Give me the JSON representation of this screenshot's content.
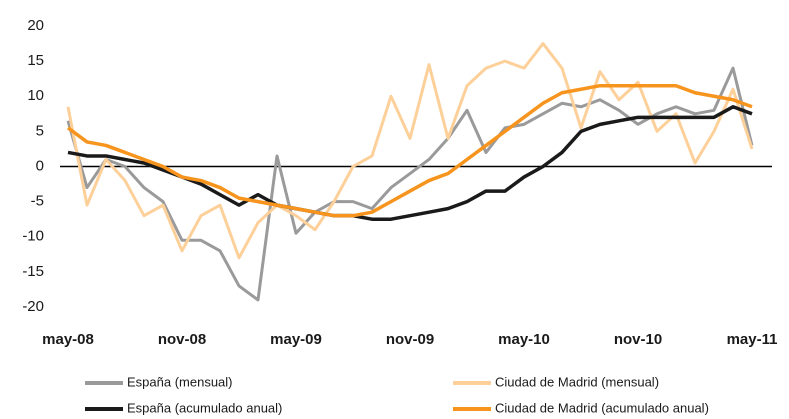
{
  "chart_data": {
    "type": "line",
    "categories": [
      "may-08",
      null,
      null,
      null,
      null,
      null,
      "nov-08",
      null,
      null,
      null,
      null,
      null,
      "may-09",
      null,
      null,
      null,
      null,
      null,
      "nov-09",
      null,
      null,
      null,
      null,
      null,
      "may-10",
      null,
      null,
      null,
      null,
      null,
      "nov-10",
      null,
      null,
      null,
      null,
      null,
      "may-11"
    ],
    "series": [
      {
        "name": "España (mensual)",
        "color": "#9a9a9a",
        "width": 3,
        "values": [
          6.5,
          -3,
          1,
          0,
          -3,
          -5,
          -10.5,
          -10.5,
          -12,
          -17,
          -19,
          1.5,
          -9.5,
          -6.5,
          -5,
          -5,
          -6,
          -3,
          -1,
          1,
          4,
          8,
          2,
          5.5,
          6,
          7.5,
          9,
          8.5,
          9.5,
          8,
          6,
          7.5,
          8.5,
          7.5,
          8,
          14,
          3
        ]
      },
      {
        "name": "Ciudad de Madrid (mensual)",
        "color": "#fdd09a",
        "width": 3,
        "values": [
          8.5,
          -5.5,
          1,
          -2,
          -7,
          -5.5,
          -12,
          -7,
          -5.5,
          -13,
          -8,
          -5.5,
          -7,
          -9,
          -5,
          0,
          1.5,
          10,
          4,
          14.5,
          4,
          11.5,
          14,
          15,
          14,
          17.5,
          14,
          5.5,
          13.5,
          9.5,
          12,
          5,
          7.5,
          0.5,
          5,
          11,
          2.5
        ]
      },
      {
        "name": "España (acumulado anual)",
        "color": "#1a1a1a",
        "width": 3.5,
        "values": [
          2,
          1.5,
          1.5,
          1,
          0.5,
          -0.5,
          -1.5,
          -2.5,
          -4,
          -5.5,
          -4,
          -5.5,
          -6,
          -6.5,
          -7,
          -7,
          -7.5,
          -7.5,
          -7,
          -6.5,
          -6,
          -5,
          -3.5,
          -3.5,
          -1.5,
          0,
          2,
          5,
          6,
          6.5,
          7,
          7,
          7,
          7,
          7,
          8.5,
          7.5
        ]
      },
      {
        "name": "Ciudad de Madrid (acumulado anual)",
        "color": "#f7941d",
        "width": 3.5,
        "values": [
          5.5,
          3.5,
          3,
          2,
          1,
          0,
          -1.5,
          -2,
          -3,
          -4.5,
          -5,
          -5.5,
          -6,
          -6.5,
          -7,
          -7,
          -6.5,
          -5,
          -3.5,
          -2,
          -1,
          1,
          3,
          5,
          7,
          9,
          10.5,
          11,
          11.5,
          11.5,
          11.5,
          11.5,
          11.5,
          10.5,
          10,
          9.5,
          8.5
        ]
      }
    ],
    "ylim": [
      -20,
      20
    ],
    "yticks": [
      -20,
      -15,
      -10,
      -5,
      0,
      5,
      10,
      15,
      20
    ],
    "grid": false,
    "legend": "bottom"
  }
}
